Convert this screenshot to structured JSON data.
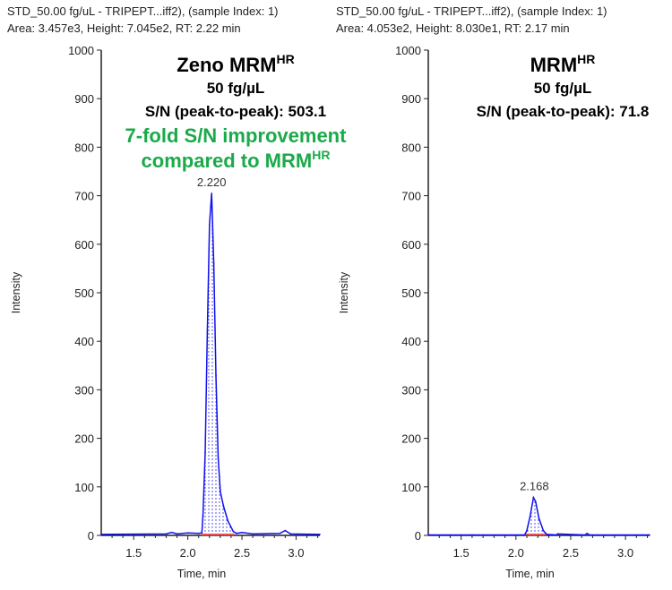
{
  "chart_data": [
    {
      "type": "line",
      "header_line1": "STD_50.00 fg/uL - TRIPEPT...iff2), (sample Index: 1)",
      "header_line2": "Area: 3.457e3, Height: 7.045e2, RT: 2.22 min",
      "title": "Zeno MRM",
      "title_sup": "HR",
      "concentration": "50 fg/µL",
      "sn": "S/N (peak-to-peak): 503.1",
      "highlight_line1": "7-fold S/N improvement",
      "highlight_line2": "compared to MRM",
      "highlight_sup": "HR",
      "peak_label": "2.220",
      "peak_rt": 2.22,
      "xlabel": "Time, min",
      "ylabel": "Intensity",
      "xlim": [
        1.2,
        3.22
      ],
      "ylim": [
        0,
        1000
      ],
      "xticks": [
        "1.5",
        "2.0",
        "2.5",
        "3.0"
      ],
      "yticks": [
        "0",
        "100",
        "200",
        "300",
        "400",
        "500",
        "600",
        "700",
        "800",
        "900",
        "1000"
      ],
      "integration_range": [
        2.13,
        2.43
      ],
      "series": [
        {
          "name": "trace",
          "color": "#1010ee",
          "x": [
            1.2,
            1.8,
            1.85,
            1.9,
            2.0,
            2.1,
            2.13,
            2.14,
            2.16,
            2.18,
            2.2,
            2.22,
            2.24,
            2.26,
            2.28,
            2.3,
            2.33,
            2.37,
            2.42,
            2.45,
            2.5,
            2.6,
            2.85,
            2.9,
            2.95,
            3.22
          ],
          "y": [
            2,
            3,
            6,
            3,
            5,
            4,
            5,
            40,
            170,
            420,
            640,
            705,
            560,
            330,
            160,
            90,
            60,
            30,
            8,
            4,
            6,
            3,
            4,
            10,
            3,
            2
          ]
        }
      ]
    },
    {
      "type": "line",
      "header_line1": "STD_50.00 fg/uL - TRIPEPT...iff2), (sample Index: 1)",
      "header_line2": "Area: 4.053e2, Height: 8.030e1, RT: 2.17 min",
      "title": "MRM",
      "title_sup": "HR",
      "concentration": "50 fg/µL",
      "sn": "S/N (peak-to-peak): 71.8",
      "peak_label": "2.168",
      "peak_rt": 2.168,
      "xlabel": "Time, min",
      "ylabel": "Intensity",
      "xlim": [
        1.2,
        3.22
      ],
      "ylim": [
        0,
        1000
      ],
      "xticks": [
        "1.5",
        "2.0",
        "2.5",
        "3.0"
      ],
      "yticks": [
        "0",
        "100",
        "200",
        "300",
        "400",
        "500",
        "600",
        "700",
        "800",
        "900",
        "1000"
      ],
      "integration_range": [
        2.09,
        2.28
      ],
      "series": [
        {
          "name": "trace",
          "color": "#1010ee",
          "x": [
            1.2,
            2.08,
            2.1,
            2.13,
            2.16,
            2.18,
            2.21,
            2.25,
            2.28,
            2.37,
            2.38,
            2.63,
            2.65,
            2.67,
            3.22
          ],
          "y": [
            1,
            1,
            10,
            40,
            78,
            70,
            35,
            10,
            2,
            1,
            3,
            1,
            4,
            1,
            1
          ]
        }
      ]
    }
  ]
}
